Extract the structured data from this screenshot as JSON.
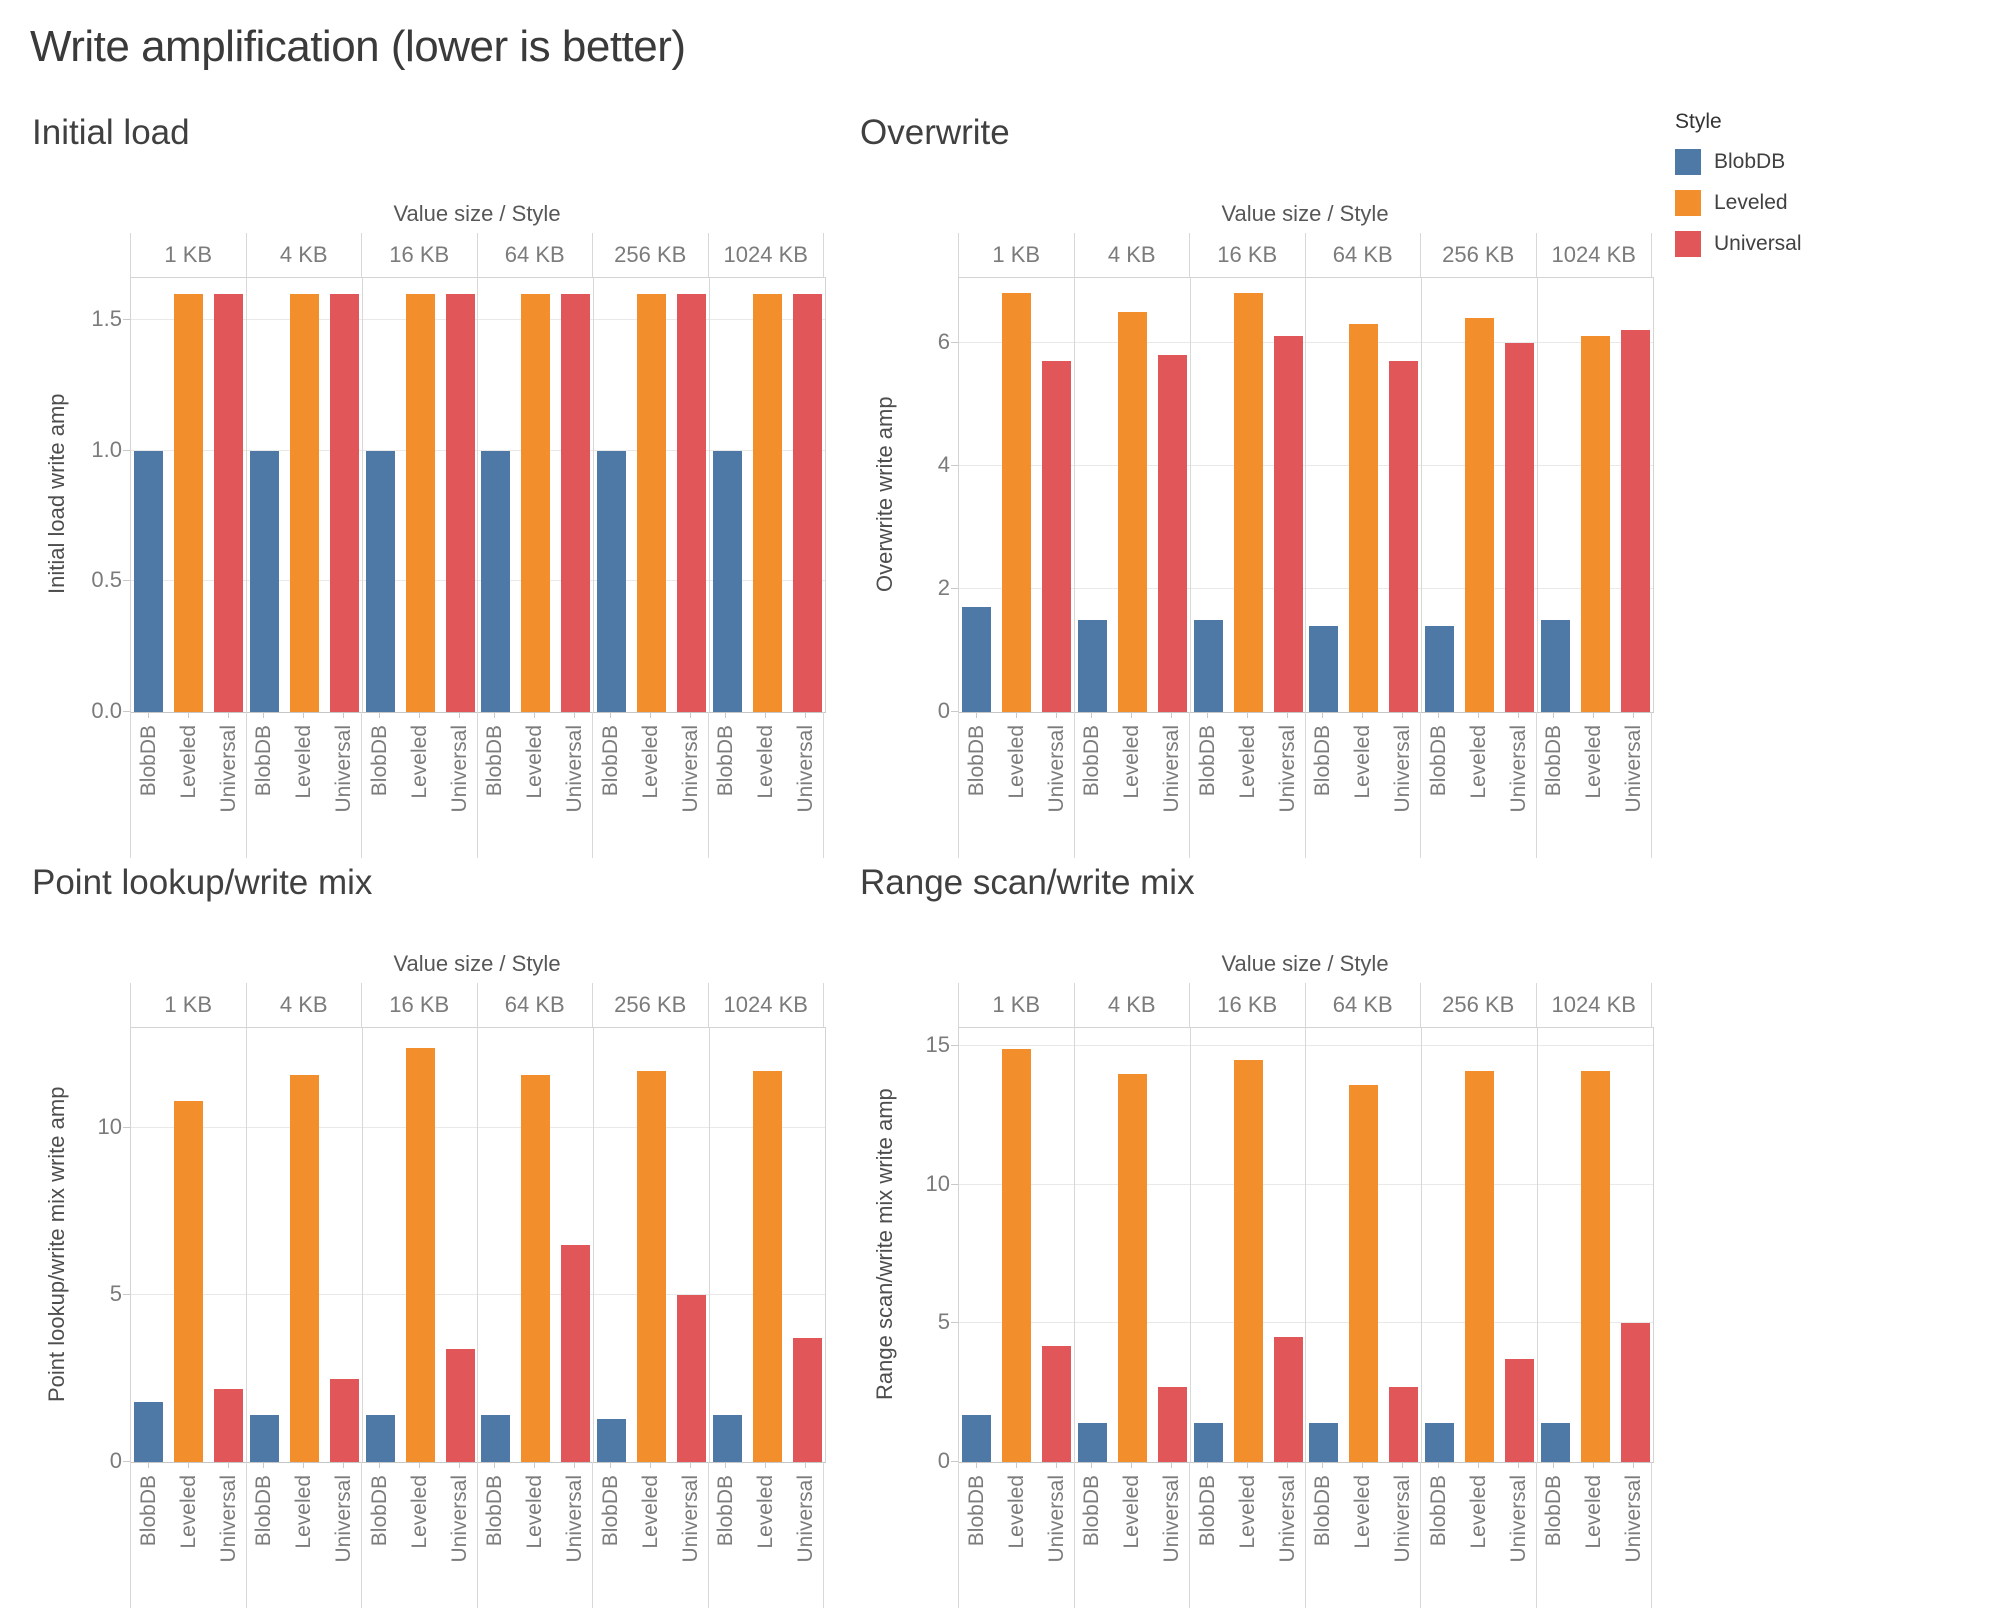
{
  "title": "Write amplification (lower is better)",
  "legend": {
    "title": "Style",
    "items": [
      {
        "label": "BlobDB",
        "color": "#4e79a7"
      },
      {
        "label": "Leveled",
        "color": "#f28e2b"
      },
      {
        "label": "Universal",
        "color": "#e15759"
      }
    ]
  },
  "colors": {
    "blobdb": "#4e79a7",
    "leveled": "#f28e2b",
    "universal": "#e15759",
    "gridline": "#e9e9e9",
    "divider": "#d8d8d8",
    "text_dark": "#3a3a3a",
    "text_gray": "#7b7b7b"
  },
  "chart_data": [
    {
      "type": "bar",
      "title": "Initial load",
      "col_axis_title": "Value size / Style",
      "ylabel": "Initial load write amp",
      "categories": [
        "1 KB",
        "4 KB",
        "16 KB",
        "64 KB",
        "256 KB",
        "1024 KB"
      ],
      "series": [
        {
          "name": "BlobDB",
          "values": [
            1.0,
            1.0,
            1.0,
            1.0,
            1.0,
            1.0
          ]
        },
        {
          "name": "Leveled",
          "values": [
            1.6,
            1.6,
            1.6,
            1.6,
            1.6,
            1.6
          ]
        },
        {
          "name": "Universal",
          "values": [
            1.6,
            1.6,
            1.6,
            1.6,
            1.6,
            1.6
          ]
        }
      ],
      "ymax": 1.66,
      "yticks": [
        0,
        0.5,
        1.0,
        1.5
      ],
      "ytick_labels": [
        "0.0",
        "0.5",
        "1.0",
        "1.5"
      ],
      "grid": true,
      "legend_position": "top-right"
    },
    {
      "type": "bar",
      "title": "Overwrite",
      "col_axis_title": "Value size / Style",
      "ylabel": "Overwrite write amp",
      "categories": [
        "1 KB",
        "4 KB",
        "16 KB",
        "64 KB",
        "256 KB",
        "1024 KB"
      ],
      "series": [
        {
          "name": "BlobDB",
          "values": [
            1.7,
            1.5,
            1.5,
            1.4,
            1.4,
            1.5
          ]
        },
        {
          "name": "Leveled",
          "values": [
            6.8,
            6.5,
            6.8,
            6.3,
            6.4,
            6.1
          ]
        },
        {
          "name": "Universal",
          "values": [
            5.7,
            5.8,
            6.1,
            5.7,
            6.0,
            6.2
          ]
        }
      ],
      "ymax": 7.05,
      "yticks": [
        0,
        2,
        4,
        6
      ],
      "ytick_labels": [
        "0",
        "2",
        "4",
        "6"
      ],
      "grid": true
    },
    {
      "type": "bar",
      "title": "Point lookup/write mix",
      "col_axis_title": "Value size / Style",
      "ylabel": "Point lookup/write mix write amp",
      "categories": [
        "1 KB",
        "4 KB",
        "16 KB",
        "64 KB",
        "256 KB",
        "1024 KB"
      ],
      "series": [
        {
          "name": "BlobDB",
          "values": [
            1.8,
            1.4,
            1.4,
            1.4,
            1.3,
            1.4
          ]
        },
        {
          "name": "Leveled",
          "values": [
            10.8,
            11.6,
            12.4,
            11.6,
            11.7,
            11.7
          ]
        },
        {
          "name": "Universal",
          "values": [
            2.2,
            2.5,
            3.4,
            6.5,
            5.0,
            3.7
          ]
        }
      ],
      "ymax": 13.0,
      "yticks": [
        0,
        5,
        10
      ],
      "ytick_labels": [
        "0",
        "5",
        "10"
      ],
      "grid": true
    },
    {
      "type": "bar",
      "title": "Range scan/write mix",
      "col_axis_title": "Value size / Style",
      "ylabel": "Range scan/write mix write amp",
      "categories": [
        "1 KB",
        "4 KB",
        "16 KB",
        "64 KB",
        "256 KB",
        "1024 KB"
      ],
      "series": [
        {
          "name": "BlobDB",
          "values": [
            1.7,
            1.4,
            1.4,
            1.4,
            1.4,
            1.4
          ]
        },
        {
          "name": "Leveled",
          "values": [
            14.9,
            14.0,
            14.5,
            13.6,
            14.1,
            14.1
          ]
        },
        {
          "name": "Universal",
          "values": [
            4.2,
            2.7,
            4.5,
            2.7,
            3.7,
            5.0
          ]
        }
      ],
      "ymax": 15.65,
      "yticks": [
        0,
        5,
        10,
        15
      ],
      "ytick_labels": [
        "0",
        "5",
        "10",
        "15"
      ],
      "grid": true
    }
  ]
}
